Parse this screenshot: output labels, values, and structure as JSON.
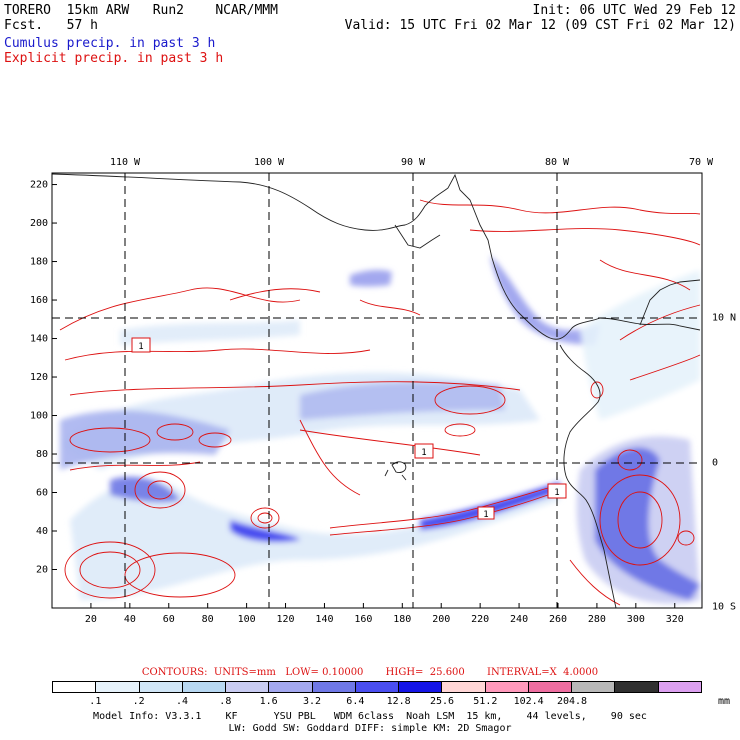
{
  "header": {
    "title_left": "TORERO  15km ARW   Run2    NCAR/MMM",
    "fcst_left": "Fcst.   57 h",
    "init_right": "Init: 06 UTC Wed 29 Feb 12",
    "valid_right": "Valid: 15 UTC Fri 02 Mar 12 (09 CST Fri 02 Mar 12)"
  },
  "legend": {
    "cumulus": "Cumulus precip. in past 3 h",
    "explicit": "Explicit precip. in past 3 h",
    "cumulus_color": "#1a1acc",
    "explicit_color": "#dd1111"
  },
  "map": {
    "lon_labels": [
      {
        "text": "110 W",
        "value": -110
      },
      {
        "text": "100 W",
        "value": -100
      },
      {
        "text": "90 W",
        "value": -90
      },
      {
        "text": "80 W",
        "value": -80
      },
      {
        "text": "70 W",
        "value": -70
      }
    ],
    "lat_labels_right": [
      {
        "text": "10 N",
        "value": 10
      },
      {
        "text": "0",
        "value": 0
      },
      {
        "text": "10 S",
        "value": -10
      }
    ],
    "x_ticks": [
      "20",
      "40",
      "60",
      "80",
      "100",
      "120",
      "140",
      "160",
      "180",
      "200",
      "220",
      "240",
      "260",
      "280",
      "300",
      "320"
    ],
    "y_ticks": [
      "20",
      "40",
      "60",
      "80",
      "100",
      "120",
      "140",
      "160",
      "180",
      "200",
      "220"
    ],
    "x_range": [
      0,
      334
    ],
    "y_range": [
      0,
      226
    ],
    "box_labels": [
      "1",
      "1",
      "1",
      "1"
    ]
  },
  "contour_info": "CONTOURS:  UNITS=mm   LOW= 0.10000       HIGH=  25.600       INTERVAL=X  4.0000",
  "scale": {
    "colors": [
      "#ffffff",
      "#e6f2fb",
      "#d1e6f7",
      "#b8d8f2",
      "#c9ccf2",
      "#a3a8ef",
      "#6f78e6",
      "#4a4ef0",
      "#1414e6",
      "#ffd6d6",
      "#ff99bb",
      "#ee6ea0",
      "#b8b8b8",
      "#303030",
      "#dca0f0"
    ],
    "ticks": [
      ".1",
      ".2",
      ".4",
      ".8",
      "1.6",
      "3.2",
      "6.4",
      "12.8",
      "25.6",
      "51.2",
      "102.4",
      "204.8"
    ],
    "units": "mm"
  },
  "footer": {
    "line1": "Model Info: V3.3.1    KF      YSU PBL   WDM 6class  Noah LSM  15 km,    44 levels,    90 sec",
    "line2": "LW: Godd SW: Goddard DIFF: simple KM: 2D Smagor"
  }
}
